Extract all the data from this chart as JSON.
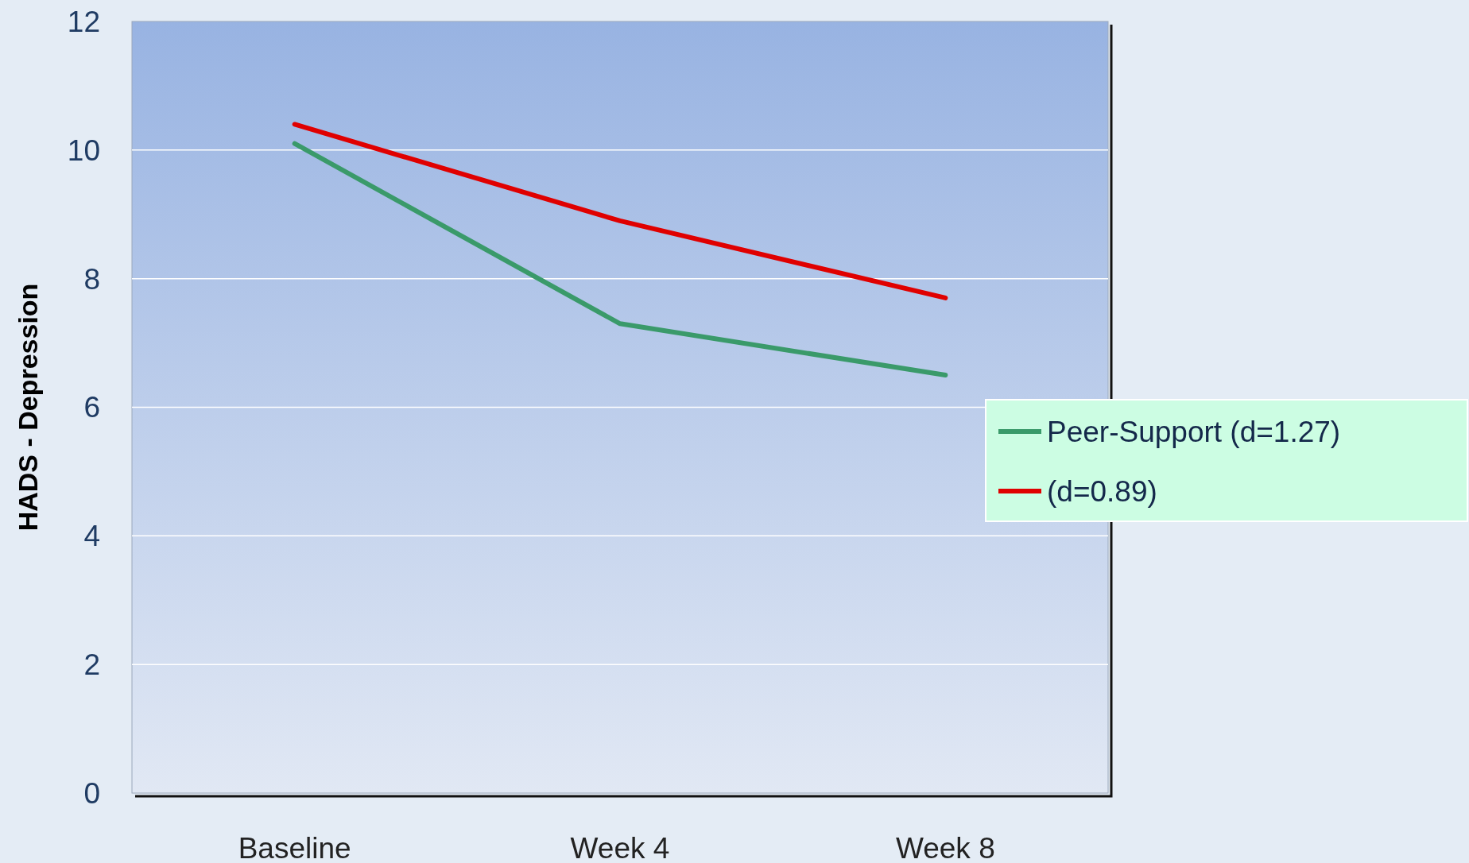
{
  "chart_data": {
    "type": "line",
    "ylabel": "HADS - Depression",
    "categories": [
      "Baseline",
      "Week 4",
      "Week 8"
    ],
    "series": [
      {
        "name": "Peer-Support (d=1.27)",
        "color": "#3a9a6a",
        "values": [
          10.1,
          7.3,
          6.5
        ]
      },
      {
        "name": "(d=0.89)",
        "color": "#e00000",
        "values": [
          10.4,
          8.9,
          7.7
        ]
      }
    ],
    "ylim": [
      0,
      12
    ],
    "yticks": [
      0,
      2,
      4,
      6,
      8,
      10,
      12
    ],
    "grid": "y",
    "legend": "right",
    "marker": "none",
    "line_style": "solid"
  }
}
